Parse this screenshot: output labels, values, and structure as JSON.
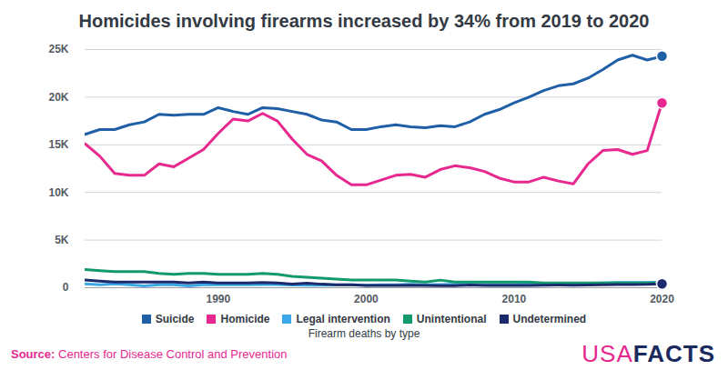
{
  "chart_data": {
    "type": "line",
    "title": "Homicides involving firearms increased by 34% from 2019 to 2020",
    "x_label": "Firearm deaths by type",
    "source_label": "Source:",
    "source": "Centers for Disease Control and Prevention",
    "logo": [
      "USA",
      "FACTS"
    ],
    "x": [
      1981,
      1982,
      1983,
      1984,
      1985,
      1986,
      1987,
      1988,
      1989,
      1990,
      1991,
      1992,
      1993,
      1994,
      1995,
      1996,
      1997,
      1998,
      1999,
      2000,
      2001,
      2002,
      2003,
      2004,
      2005,
      2006,
      2007,
      2008,
      2009,
      2010,
      2011,
      2012,
      2013,
      2014,
      2015,
      2016,
      2017,
      2018,
      2019,
      2020
    ],
    "xlim": [
      1981,
      2020
    ],
    "xticks": [
      1990,
      2000,
      2010,
      2020
    ],
    "ylim": [
      0,
      25000
    ],
    "yticks": [
      0,
      {
        "value": 5000,
        "label": "5K"
      },
      {
        "value": 10000,
        "label": "10K"
      },
      {
        "value": 15000,
        "label": "15K"
      },
      {
        "value": 20000,
        "label": "20K"
      },
      {
        "value": 25000,
        "label": "25K"
      }
    ],
    "grid": true,
    "legend": "bottom",
    "marker": "circle",
    "series": [
      {
        "name": "Suicide",
        "color": "#1f5fa6",
        "values": [
          16100,
          16600,
          16600,
          17100,
          17400,
          18200,
          18100,
          18200,
          18200,
          18900,
          18500,
          18200,
          18900,
          18800,
          18500,
          18200,
          17600,
          17400,
          16600,
          16600,
          16900,
          17100,
          16900,
          16800,
          17000,
          16900,
          17400,
          18200,
          18700,
          19400,
          20000,
          20700,
          21200,
          21400,
          22000,
          22900,
          23900,
          24400,
          23900,
          24300
        ]
      },
      {
        "name": "Homicide",
        "color": "#e6288f",
        "values": [
          15100,
          13800,
          12000,
          11800,
          11800,
          13000,
          12700,
          13600,
          14500,
          16200,
          17700,
          17500,
          18300,
          17500,
          15600,
          14000,
          13300,
          11800,
          10800,
          10800,
          11300,
          11800,
          11900,
          11600,
          12400,
          12800,
          12600,
          12200,
          11500,
          11100,
          11100,
          11600,
          11200,
          10900,
          13000,
          14400,
          14500,
          14000,
          14400,
          19400
        ]
      },
      {
        "name": "Legal intervention",
        "color": "#3ba7e6",
        "values": [
          400,
          300,
          400,
          300,
          200,
          300,
          300,
          200,
          300,
          300,
          300,
          300,
          340,
          340,
          280,
          270,
          270,
          290,
          300,
          270,
          320,
          300,
          350,
          310,
          330,
          360,
          350,
          330,
          330,
          340,
          450,
          470,
          470,
          460,
          480,
          510,
          550,
          540,
          540,
          610
        ]
      },
      {
        "name": "Unintentional",
        "color": "#139a6c",
        "values": [
          1900,
          1800,
          1700,
          1700,
          1700,
          1500,
          1400,
          1500,
          1500,
          1400,
          1400,
          1400,
          1500,
          1400,
          1200,
          1100,
          1000,
          900,
          800,
          800,
          800,
          800,
          700,
          600,
          800,
          600,
          600,
          600,
          600,
          600,
          600,
          500,
          500,
          500,
          500,
          500,
          500,
          500,
          500,
          500
        ]
      },
      {
        "name": "Undetermined",
        "color": "#1b2a6b",
        "values": [
          800,
          700,
          600,
          600,
          600,
          600,
          600,
          500,
          600,
          500,
          500,
          500,
          560,
          510,
          390,
          480,
          370,
          320,
          320,
          230,
          230,
          240,
          260,
          240,
          220,
          220,
          280,
          250,
          230,
          250,
          250,
          260,
          280,
          270,
          280,
          300,
          340,
          340,
          350,
          400
        ]
      }
    ]
  }
}
